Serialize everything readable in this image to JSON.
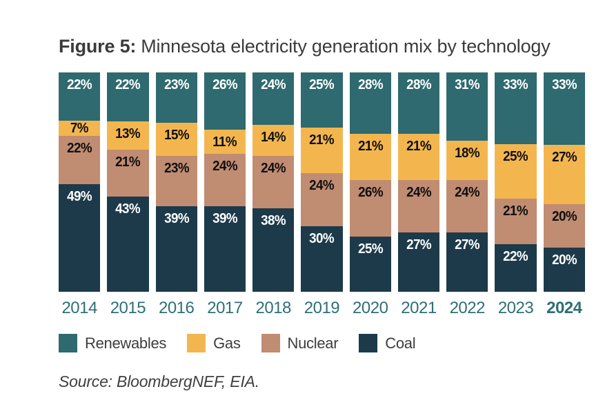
{
  "figure": {
    "label": "Figure 5:",
    "title": "Minnesota electricity generation mix by technology"
  },
  "source_note": "Source: BloombergNEF, EIA.",
  "colors": {
    "renewables": "#2E6A6F",
    "gas": "#F3B64F",
    "nuclear": "#C08C72",
    "coal": "#1C3A4A",
    "year_label": "#2E6F75",
    "title_text": "#3B3B3B",
    "label_on_dark": "#FFFFFF",
    "label_on_light": "#0F0F0F"
  },
  "chart_data": {
    "type": "bar",
    "stacked": true,
    "unit": "%",
    "title": "Minnesota electricity generation mix by technology",
    "categories": [
      "2014",
      "2015",
      "2016",
      "2017",
      "2018",
      "2019",
      "2020",
      "2021",
      "2022",
      "2023",
      "2024"
    ],
    "series": [
      {
        "name": "Renewables",
        "key": "renewables",
        "color": "#2E6A6F",
        "label_color": "#FFFFFF",
        "values": [
          22,
          22,
          23,
          26,
          24,
          25,
          28,
          28,
          31,
          33,
          33
        ]
      },
      {
        "name": "Gas",
        "key": "gas",
        "color": "#F3B64F",
        "label_color": "#0F0F0F",
        "values": [
          7,
          13,
          15,
          11,
          14,
          21,
          21,
          21,
          18,
          25,
          27
        ]
      },
      {
        "name": "Nuclear",
        "key": "nuclear",
        "color": "#C08C72",
        "label_color": "#0F0F0F",
        "values": [
          22,
          21,
          23,
          24,
          24,
          24,
          26,
          24,
          24,
          21,
          20
        ]
      },
      {
        "name": "Coal",
        "key": "coal",
        "color": "#1C3A4A",
        "label_color": "#FFFFFF",
        "values": [
          49,
          43,
          39,
          39,
          38,
          30,
          25,
          27,
          27,
          22,
          20
        ]
      }
    ],
    "legend": [
      "Renewables",
      "Gas",
      "Nuclear",
      "Coal"
    ],
    "legend_position": "bottom",
    "ylim": [
      0,
      100
    ],
    "grid": false,
    "axis_lines": false,
    "highlighted_category": "2024"
  }
}
